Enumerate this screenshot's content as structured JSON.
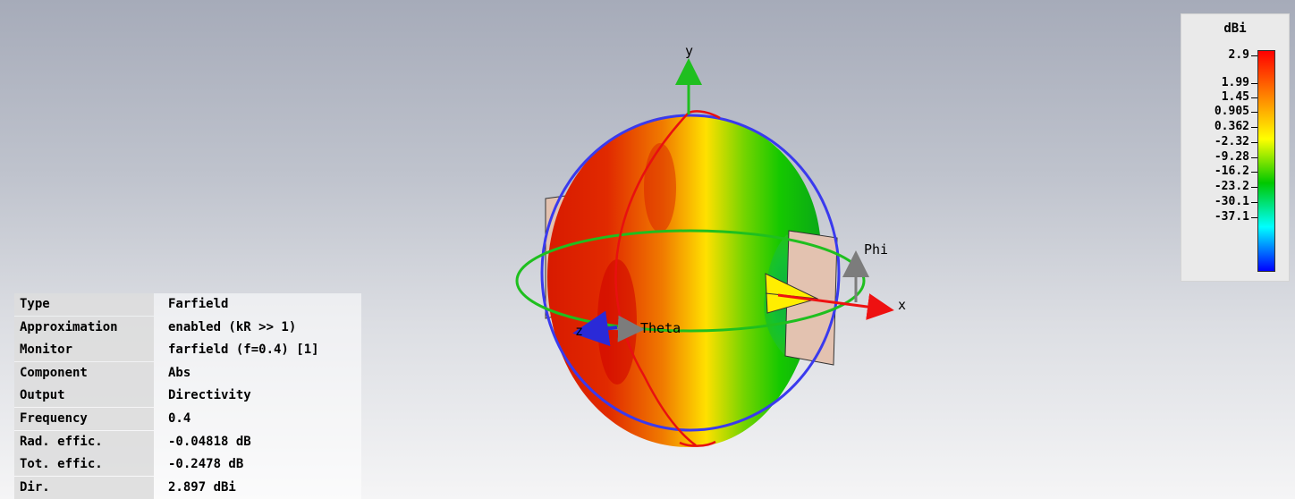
{
  "scene": {
    "axes": {
      "y": "y",
      "x": "x",
      "z": "z",
      "theta": "Theta",
      "phi": "Phi"
    }
  },
  "legend": {
    "unit": "dBi",
    "ticks": [
      "2.9",
      "1.99",
      "1.45",
      "0.905",
      "0.362",
      "-2.32",
      "-9.28",
      "-16.2",
      "-23.2",
      "-30.1",
      "-37.1"
    ],
    "colors": [
      "#ff0000",
      "#ff8000",
      "#ffff00",
      "#00c800",
      "#00ffff",
      "#0000ff"
    ]
  },
  "info": {
    "rows": [
      {
        "key": "Type",
        "value": "Farfield"
      },
      {
        "key": "Approximation",
        "value": "enabled (kR >> 1)"
      },
      {
        "key": "Monitor",
        "value": "farfield (f=0.4) [1]"
      },
      {
        "key": "Component",
        "value": "Abs"
      },
      {
        "key": "Output",
        "value": "Directivity"
      },
      {
        "key": "Frequency",
        "value": "0.4"
      },
      {
        "key": "Rad. effic.",
        "value": "-0.04818 dB"
      },
      {
        "key": "Tot. effic.",
        "value": "-0.2478 dB"
      },
      {
        "key": "Dir.",
        "value": " 2.897 dBi"
      }
    ]
  }
}
